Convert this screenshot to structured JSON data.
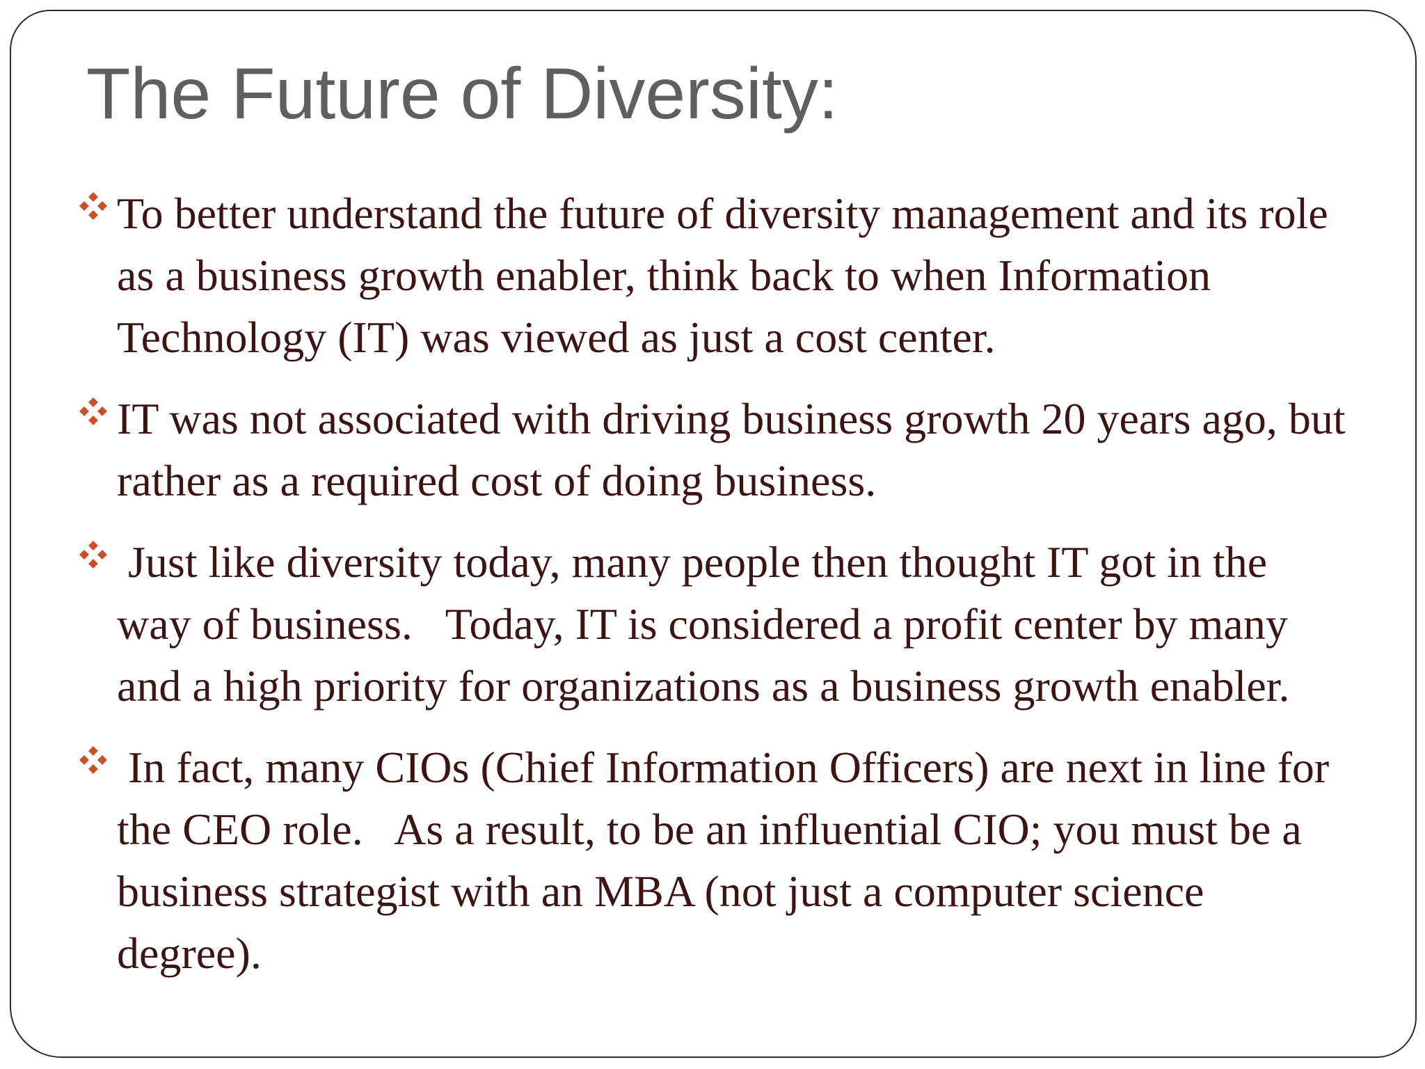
{
  "slide": {
    "title": "The Future of Diversity:",
    "bullet_icon": "four-diamond-bullet-icon",
    "bullet_color": "#c8502a",
    "bullets": [
      {
        "text": "To better understand the future of diversity management and its role as a business growth enabler, think back to when Information Technology (IT) was viewed as just a cost center."
      },
      {
        "text": "IT was not associated with driving business growth 20 years ago, but rather as a required cost of doing business."
      },
      {
        "text": " Just like diversity today, many people then thought IT got in the way of business.   Today, IT is considered a profit center by many and a high priority for organizations as a business growth enabler."
      },
      {
        "text": " In fact, many CIOs (Chief Information Officers) are next in line for the CEO role.   As a result, to be an influential CIO; you must be a business strategist with an MBA (not just a computer science degree)."
      }
    ]
  }
}
